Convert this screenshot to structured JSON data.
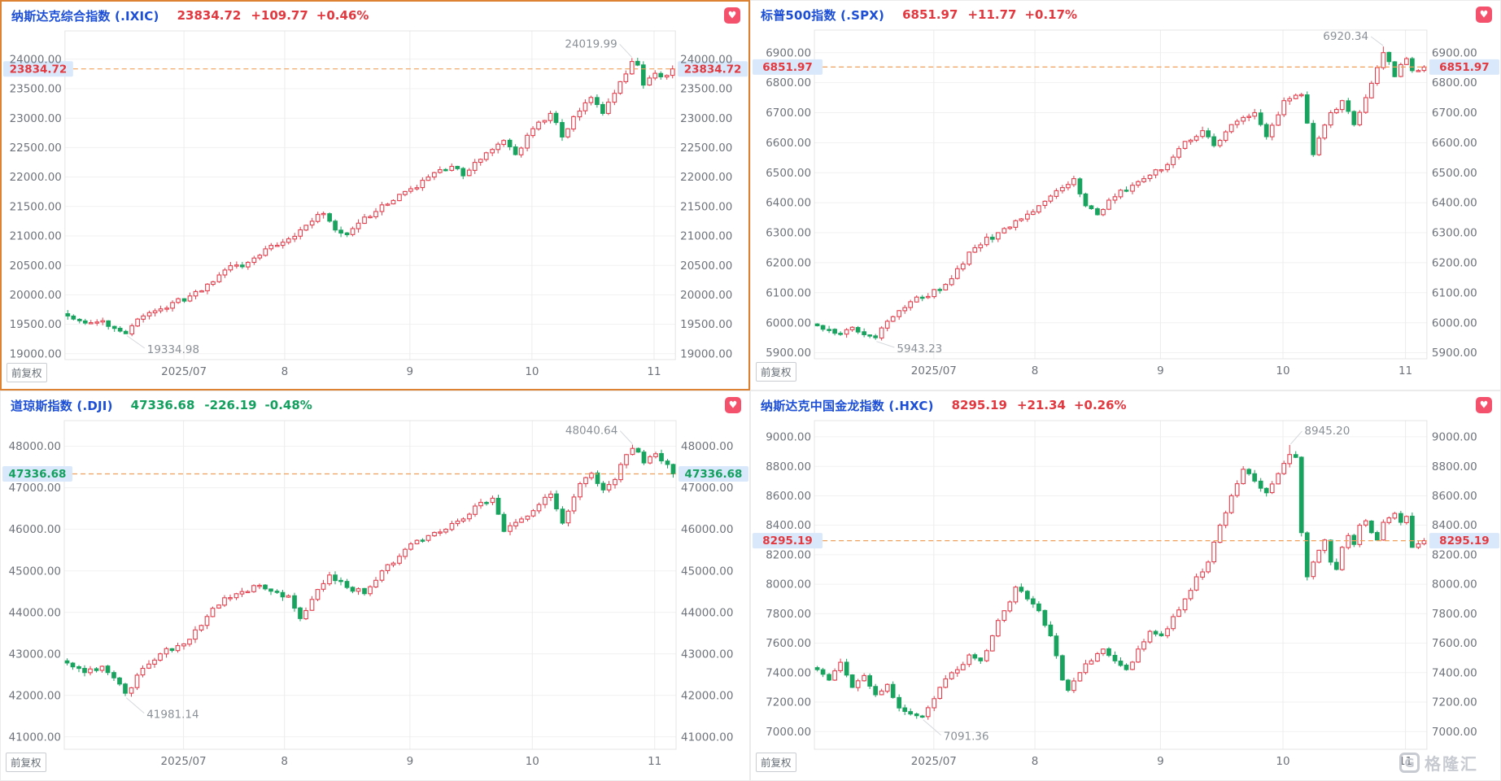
{
  "app": {
    "adjust_label": "前复权",
    "watermark": "格隆汇",
    "watermark_logo": "G"
  },
  "icons": {
    "favorite": "♥"
  },
  "colors": {
    "up": "#e2383f",
    "down": "#13a05f",
    "candle_up": "#e2404e",
    "candle_down": "#18a35f",
    "title_blue": "#1c4fd6",
    "axis_text": "#6e737b",
    "grid": "#f1f1f1",
    "grid_vertical": "#ececec",
    "plot_border": "#e4e4e4",
    "dash_line": "#f0a05a",
    "tag_bg": "#d9e8fa",
    "annotation_text": "#8a9097",
    "annotation_line": "#d5d8dc",
    "heart_bg": "#f4516c",
    "selected_border": "#dd8133",
    "watermark": "#c7cbd1"
  },
  "time_axis": {
    "n_candles": 105,
    "ticks": [
      {
        "label": "2025/07",
        "f": 0.195
      },
      {
        "label": "8",
        "f": 0.36
      },
      {
        "label": "9",
        "f": 0.565
      },
      {
        "label": "10",
        "f": 0.765
      },
      {
        "label": "11",
        "f": 0.965
      }
    ]
  },
  "panels": [
    {
      "title": "纳斯达克综合指数 (.IXIC)",
      "price": "23834.72",
      "change": "+109.77",
      "change_pct": "+0.46%",
      "direction": "up",
      "selected": true
    },
    {
      "title": "标普500指数 (.SPX)",
      "price": "6851.97",
      "change": "+11.77",
      "change_pct": "+0.17%",
      "direction": "up",
      "selected": false
    },
    {
      "title": "道琼斯指数 (.DJI)",
      "price": "47336.68",
      "change": "-226.19",
      "change_pct": "-0.48%",
      "direction": "down",
      "selected": false
    },
    {
      "title": "纳斯达克中国金龙指数 (.HXC)",
      "price": "8295.19",
      "change": "+21.34",
      "change_pct": "+0.26%",
      "direction": "up",
      "selected": false
    }
  ],
  "chart_data": [
    {
      "type": "candlestick",
      "title": "纳斯达克综合指数 (.IXIC)",
      "seed": 1,
      "y_axis": {
        "min": 18900,
        "max": 24480,
        "ticks": [
          24000,
          23500,
          23000,
          22500,
          22000,
          21500,
          21000,
          20500,
          20000,
          19500,
          19000
        ],
        "format": "0.00"
      },
      "x_ticks": [
        "2025/07",
        "8",
        "9",
        "10",
        "11"
      ],
      "last_price": 23834.72,
      "high_annotation": {
        "value": 24019.99,
        "label": "24019.99",
        "index": 97,
        "side": "left"
      },
      "low_annotation": {
        "value": 19334.98,
        "label": "19334.98",
        "index": 10,
        "side": "right"
      },
      "close_path": [
        [
          0,
          19640
        ],
        [
          3,
          19520
        ],
        [
          6,
          19560
        ],
        [
          10,
          19340
        ],
        [
          13,
          19640
        ],
        [
          16,
          19760
        ],
        [
          21,
          19980
        ],
        [
          24,
          20180
        ],
        [
          27,
          20420
        ],
        [
          31,
          20550
        ],
        [
          34,
          20780
        ],
        [
          38,
          20950
        ],
        [
          41,
          21180
        ],
        [
          44,
          21380
        ],
        [
          46,
          21100
        ],
        [
          48,
          21020
        ],
        [
          51,
          21320
        ],
        [
          55,
          21540
        ],
        [
          59,
          21800
        ],
        [
          62,
          22000
        ],
        [
          66,
          22180
        ],
        [
          68,
          22020
        ],
        [
          71,
          22300
        ],
        [
          75,
          22620
        ],
        [
          77,
          22380
        ],
        [
          80,
          22820
        ],
        [
          83,
          23080
        ],
        [
          85,
          22680
        ],
        [
          88,
          23120
        ],
        [
          90,
          23350
        ],
        [
          92,
          23080
        ],
        [
          94,
          23420
        ],
        [
          96,
          23750
        ],
        [
          97,
          23960
        ],
        [
          98,
          23900
        ],
        [
          99,
          23560
        ],
        [
          100,
          23680
        ],
        [
          101,
          23760
        ],
        [
          102,
          23700
        ],
        [
          103,
          23724.95
        ],
        [
          104,
          23834.72
        ]
      ]
    },
    {
      "type": "candlestick",
      "title": "标普500指数 (.SPX)",
      "seed": 2,
      "y_axis": {
        "min": 5880,
        "max": 6975,
        "ticks": [
          6900,
          6800,
          6700,
          6600,
          6500,
          6400,
          6300,
          6200,
          6100,
          6000,
          5900
        ],
        "format": "0.00"
      },
      "x_ticks": [
        "2025/07",
        "8",
        "9",
        "10",
        "11"
      ],
      "last_price": 6851.97,
      "high_annotation": {
        "value": 6920.34,
        "label": "6920.34",
        "index": 97,
        "side": "left"
      },
      "low_annotation": {
        "value": 5943.23,
        "label": "5943.23",
        "index": 10,
        "side": "right"
      },
      "close_path": [
        [
          0,
          5990
        ],
        [
          3,
          5965
        ],
        [
          6,
          5985
        ],
        [
          10,
          5950
        ],
        [
          13,
          6020
        ],
        [
          16,
          6070
        ],
        [
          21,
          6110
        ],
        [
          24,
          6180
        ],
        [
          27,
          6250
        ],
        [
          31,
          6300
        ],
        [
          34,
          6340
        ],
        [
          38,
          6390
        ],
        [
          41,
          6440
        ],
        [
          44,
          6480
        ],
        [
          46,
          6390
        ],
        [
          48,
          6360
        ],
        [
          51,
          6420
        ],
        [
          55,
          6470
        ],
        [
          59,
          6510
        ],
        [
          62,
          6580
        ],
        [
          66,
          6640
        ],
        [
          68,
          6590
        ],
        [
          71,
          6660
        ],
        [
          75,
          6700
        ],
        [
          77,
          6620
        ],
        [
          80,
          6740
        ],
        [
          83,
          6760
        ],
        [
          85,
          6560
        ],
        [
          88,
          6700
        ],
        [
          90,
          6740
        ],
        [
          92,
          6660
        ],
        [
          94,
          6750
        ],
        [
          96,
          6850
        ],
        [
          97,
          6900
        ],
        [
          98,
          6870
        ],
        [
          99,
          6820
        ],
        [
          100,
          6860
        ],
        [
          101,
          6880
        ],
        [
          102,
          6840
        ],
        [
          103,
          6840.2
        ],
        [
          104,
          6851.97
        ]
      ]
    },
    {
      "type": "candlestick",
      "title": "道琼斯指数 (.DJI)",
      "seed": 3,
      "y_axis": {
        "min": 40700,
        "max": 48620,
        "ticks": [
          48000,
          47000,
          46000,
          45000,
          44000,
          43000,
          42000,
          41000
        ],
        "format": "0.00"
      },
      "x_ticks": [
        "2025/07",
        "8",
        "9",
        "10",
        "11"
      ],
      "last_price": 47336.68,
      "high_annotation": {
        "value": 48040.64,
        "label": "48040.64",
        "index": 97,
        "side": "left"
      },
      "low_annotation": {
        "value": 41981.14,
        "label": "41981.14",
        "index": 10,
        "side": "right"
      },
      "close_path": [
        [
          0,
          42780
        ],
        [
          3,
          42550
        ],
        [
          6,
          42700
        ],
        [
          10,
          42050
        ],
        [
          13,
          42650
        ],
        [
          16,
          43000
        ],
        [
          21,
          43350
        ],
        [
          24,
          43900
        ],
        [
          27,
          44350
        ],
        [
          30,
          44500
        ],
        [
          33,
          44650
        ],
        [
          36,
          44480
        ],
        [
          38,
          44400
        ],
        [
          40,
          43850
        ],
        [
          43,
          44550
        ],
        [
          45,
          44900
        ],
        [
          48,
          44600
        ],
        [
          51,
          44450
        ],
        [
          54,
          45000
        ],
        [
          57,
          45350
        ],
        [
          59,
          45650
        ],
        [
          62,
          45850
        ],
        [
          65,
          46000
        ],
        [
          68,
          46250
        ],
        [
          71,
          46650
        ],
        [
          73,
          46750
        ],
        [
          75,
          45950
        ],
        [
          78,
          46250
        ],
        [
          80,
          46450
        ],
        [
          83,
          46850
        ],
        [
          85,
          46150
        ],
        [
          88,
          47100
        ],
        [
          90,
          47350
        ],
        [
          92,
          46950
        ],
        [
          94,
          47200
        ],
        [
          96,
          47800
        ],
        [
          97,
          47950
        ],
        [
          98,
          47860
        ],
        [
          99,
          47600
        ],
        [
          100,
          47750
        ],
        [
          101,
          47820
        ],
        [
          102,
          47650
        ],
        [
          103,
          47562.87
        ],
        [
          104,
          47336.68
        ]
      ]
    },
    {
      "type": "candlestick",
      "title": "纳斯达克中国金龙指数 (.HXC)",
      "seed": 4,
      "y_axis": {
        "min": 6880,
        "max": 9110,
        "ticks": [
          9000,
          8800,
          8600,
          8400,
          8200,
          8000,
          7800,
          7600,
          7400,
          7200,
          7000
        ],
        "format": "0.00"
      },
      "x_ticks": [
        "2025/07",
        "8",
        "9",
        "10",
        "11"
      ],
      "last_price": 8295.19,
      "high_annotation": {
        "value": 8945.2,
        "label": "8945.20",
        "index": 81,
        "side": "right"
      },
      "low_annotation": {
        "value": 7091.36,
        "label": "7091.36",
        "index": 18,
        "side": "right"
      },
      "close_path": [
        [
          0,
          7420
        ],
        [
          2,
          7350
        ],
        [
          4,
          7470
        ],
        [
          6,
          7300
        ],
        [
          8,
          7380
        ],
        [
          10,
          7250
        ],
        [
          12,
          7320
        ],
        [
          14,
          7160
        ],
        [
          16,
          7120
        ],
        [
          18,
          7100
        ],
        [
          21,
          7300
        ],
        [
          24,
          7420
        ],
        [
          26,
          7520
        ],
        [
          28,
          7480
        ],
        [
          30,
          7650
        ],
        [
          32,
          7820
        ],
        [
          34,
          7980
        ],
        [
          36,
          7900
        ],
        [
          38,
          7820
        ],
        [
          40,
          7650
        ],
        [
          42,
          7350
        ],
        [
          43,
          7280
        ],
        [
          45,
          7400
        ],
        [
          47,
          7480
        ],
        [
          49,
          7560
        ],
        [
          51,
          7480
        ],
        [
          53,
          7420
        ],
        [
          55,
          7560
        ],
        [
          57,
          7680
        ],
        [
          59,
          7650
        ],
        [
          61,
          7780
        ],
        [
          63,
          7900
        ],
        [
          65,
          8050
        ],
        [
          67,
          8150
        ],
        [
          69,
          8400
        ],
        [
          71,
          8600
        ],
        [
          73,
          8780
        ],
        [
          75,
          8700
        ],
        [
          77,
          8620
        ],
        [
          79,
          8750
        ],
        [
          81,
          8880
        ],
        [
          82,
          8860
        ],
        [
          83,
          8350
        ],
        [
          84,
          8050
        ],
        [
          85,
          8150
        ],
        [
          86,
          8230
        ],
        [
          87,
          8300
        ],
        [
          88,
          8150
        ],
        [
          89,
          8100
        ],
        [
          90,
          8250
        ],
        [
          91,
          8330
        ],
        [
          92,
          8270
        ],
        [
          93,
          8400
        ],
        [
          94,
          8430
        ],
        [
          95,
          8350
        ],
        [
          96,
          8300
        ],
        [
          97,
          8420
        ],
        [
          98,
          8450
        ],
        [
          99,
          8480
        ],
        [
          100,
          8420
        ],
        [
          101,
          8460
        ],
        [
          102,
          8250
        ],
        [
          103,
          8273.85
        ],
        [
          104,
          8295.19
        ]
      ]
    }
  ]
}
